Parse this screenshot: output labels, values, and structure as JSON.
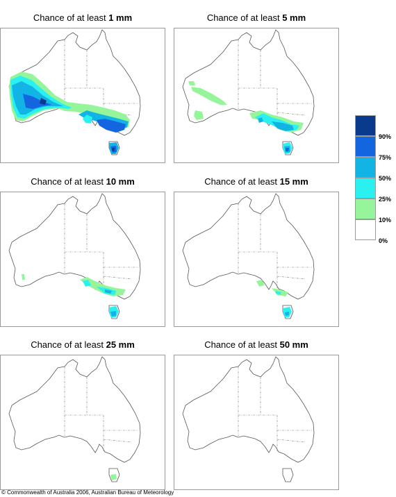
{
  "panels": [
    {
      "id": "1mm",
      "title_prefix": "Chance of at least ",
      "amount": "1 mm"
    },
    {
      "id": "5mm",
      "title_prefix": "Chance of at least ",
      "amount": "5 mm"
    },
    {
      "id": "10mm",
      "title_prefix": "Chance of at least ",
      "amount": "10 mm"
    },
    {
      "id": "15mm",
      "title_prefix": "Chance of at least ",
      "amount": "15 mm"
    },
    {
      "id": "25mm",
      "title_prefix": "Chance of at least ",
      "amount": "25 mm"
    },
    {
      "id": "50mm",
      "title_prefix": "Chance of at least ",
      "amount": "50 mm"
    }
  ],
  "legend": {
    "bins": [
      {
        "color": "#0a3a8c",
        "label": "90%"
      },
      {
        "color": "#1466e0",
        "label": "75%"
      },
      {
        "color": "#12b4e6",
        "label": "50%"
      },
      {
        "color": "#2af0f0",
        "label": "25%"
      },
      {
        "color": "#96f59a",
        "label": "10%"
      },
      {
        "color": "#ffffff",
        "label": "0%"
      }
    ]
  },
  "copyright": "© Commonwealth of Australia 2006, Australian Bureau of Meteorology"
}
